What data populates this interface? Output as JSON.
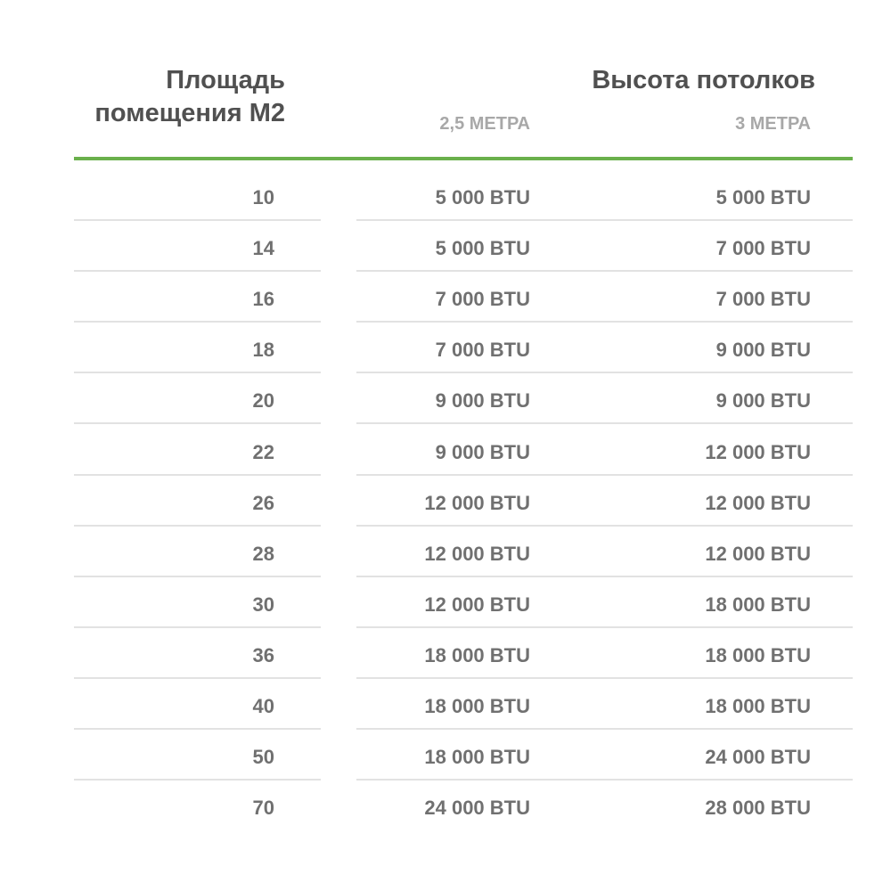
{
  "header": {
    "area_title": "Площадь помещения М2",
    "ceiling_title": "Высота потолков",
    "col_25": "2,5 МЕТРА",
    "col_3": "3 МЕТРА"
  },
  "colors": {
    "accent": "#6ab04c",
    "header_text": "#505050",
    "subheader_text": "#a8a8a8",
    "value_text": "#707070",
    "divider": "#e2e2e2"
  },
  "rows": [
    {
      "area": "10",
      "h25": "5 000 BTU",
      "h3": "5 000 BTU"
    },
    {
      "area": "14",
      "h25": "5 000 BTU",
      "h3": "7 000 BTU"
    },
    {
      "area": "16",
      "h25": "7 000 BTU",
      "h3": "7 000 BTU"
    },
    {
      "area": "18",
      "h25": "7 000 BTU",
      "h3": "9 000 BTU"
    },
    {
      "area": "20",
      "h25": "9 000 BTU",
      "h3": "9 000 BTU"
    },
    {
      "area": "22",
      "h25": "9 000 BTU",
      "h3": "12 000 BTU"
    },
    {
      "area": "26",
      "h25": "12 000 BTU",
      "h3": "12 000 BTU"
    },
    {
      "area": "28",
      "h25": "12 000 BTU",
      "h3": "12 000 BTU"
    },
    {
      "area": "30",
      "h25": "12 000 BTU",
      "h3": "18 000 BTU"
    },
    {
      "area": "36",
      "h25": "18 000 BTU",
      "h3": "18 000 BTU"
    },
    {
      "area": "40",
      "h25": "18 000 BTU",
      "h3": "18 000 BTU"
    },
    {
      "area": "50",
      "h25": "18 000 BTU",
      "h3": "24 000 BTU"
    },
    {
      "area": "70",
      "h25": "24 000 BTU",
      "h3": "28 000 BTU"
    }
  ]
}
